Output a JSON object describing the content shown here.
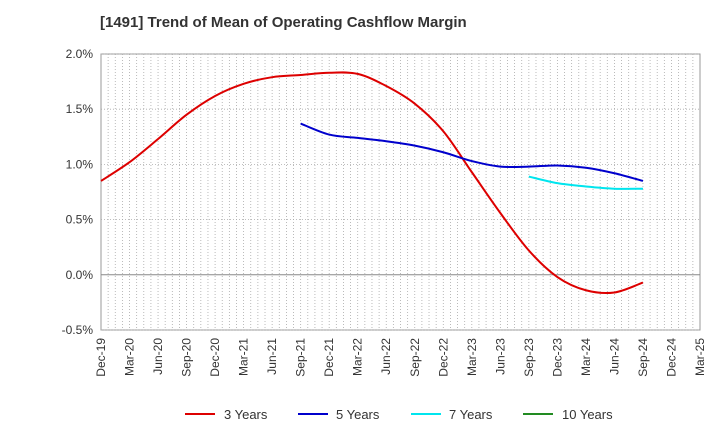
{
  "chart_data": {
    "type": "line",
    "title": "[1491]  Trend of Mean of Operating Cashflow Margin",
    "xlabel": "",
    "ylabel": "",
    "ylim": [
      -0.5,
      2.0
    ],
    "y_ticks": [
      "2.0%",
      "1.5%",
      "1.0%",
      "0.5%",
      "0.0%",
      "-0.5%"
    ],
    "y_tick_values": [
      2.0,
      1.5,
      1.0,
      0.5,
      0.0,
      -0.5
    ],
    "categories": [
      "Dec-19",
      "Mar-20",
      "Jun-20",
      "Sep-20",
      "Dec-20",
      "Mar-21",
      "Jun-21",
      "Sep-21",
      "Dec-21",
      "Mar-22",
      "Jun-22",
      "Sep-22",
      "Dec-22",
      "Mar-23",
      "Jun-23",
      "Sep-23",
      "Dec-23",
      "Mar-24",
      "Jun-24",
      "Sep-24",
      "Dec-24",
      "Mar-25"
    ],
    "grid": true,
    "legend_position": "bottom",
    "series": [
      {
        "name": "3 Years",
        "color": "#dd0000",
        "values": [
          0.85,
          1.02,
          1.23,
          1.45,
          1.62,
          1.73,
          1.79,
          1.81,
          1.83,
          1.82,
          1.71,
          1.55,
          1.3,
          0.93,
          0.56,
          0.22,
          -0.02,
          -0.14,
          -0.16,
          -0.07,
          null,
          null
        ]
      },
      {
        "name": "5 Years",
        "color": "#0000cc",
        "values": [
          null,
          null,
          null,
          null,
          null,
          null,
          null,
          1.37,
          1.27,
          1.24,
          1.21,
          1.17,
          1.11,
          1.03,
          0.98,
          0.98,
          0.99,
          0.97,
          0.92,
          0.85,
          null,
          null
        ]
      },
      {
        "name": "7 Years",
        "color": "#00e5ee",
        "values": [
          null,
          null,
          null,
          null,
          null,
          null,
          null,
          null,
          null,
          null,
          null,
          null,
          null,
          null,
          null,
          0.89,
          0.83,
          0.8,
          0.78,
          0.78,
          null,
          null
        ]
      },
      {
        "name": "10 Years",
        "color": "#228b22",
        "values": [
          null,
          null,
          null,
          null,
          null,
          null,
          null,
          null,
          null,
          null,
          null,
          null,
          null,
          null,
          null,
          null,
          null,
          null,
          null,
          null,
          null,
          null
        ]
      }
    ]
  }
}
